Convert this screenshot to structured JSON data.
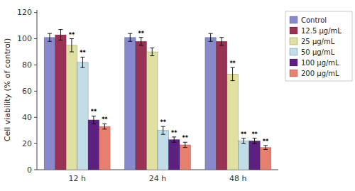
{
  "chart_data": {
    "type": "bar",
    "categories": [
      "12 h",
      "24 h",
      "48 h"
    ],
    "ylabel": "Cell viability (% of control)",
    "ylim": [
      0,
      122
    ],
    "yticks": [
      0,
      20,
      40,
      60,
      80,
      100,
      120
    ],
    "legend": "upper right",
    "series": [
      {
        "name": "Control",
        "color": "#8888cc",
        "values": [
          101,
          101,
          101
        ],
        "errors": [
          3,
          3,
          3
        ],
        "sig_labels": [
          null,
          null,
          null
        ]
      },
      {
        "name": "12.5 μg/mL",
        "color": "#993355",
        "values": [
          103,
          98,
          98
        ],
        "errors": [
          4,
          3,
          3
        ],
        "sig_labels": [
          null,
          "**",
          null
        ]
      },
      {
        "name": "25 μg/mL",
        "color": "#e0e0a0",
        "values": [
          95,
          90,
          73
        ],
        "errors": [
          5,
          3,
          5
        ],
        "sig_labels": [
          "**",
          null,
          "**"
        ]
      },
      {
        "name": "50 μg/mL",
        "color": "#c0dde8",
        "values": [
          82,
          30,
          22
        ],
        "errors": [
          4,
          3,
          2
        ],
        "sig_labels": [
          "**",
          "**",
          "**"
        ]
      },
      {
        "name": "100 μg/mL",
        "color": "#5c2080",
        "values": [
          38,
          23,
          22
        ],
        "errors": [
          3,
          2,
          2
        ],
        "sig_labels": [
          "**",
          "**",
          "**"
        ]
      },
      {
        "name": "200 μg/mL",
        "color": "#e88070",
        "values": [
          33,
          19,
          17
        ],
        "errors": [
          2,
          2,
          1.5
        ],
        "sig_labels": [
          "**",
          "**",
          "**"
        ]
      }
    ]
  }
}
